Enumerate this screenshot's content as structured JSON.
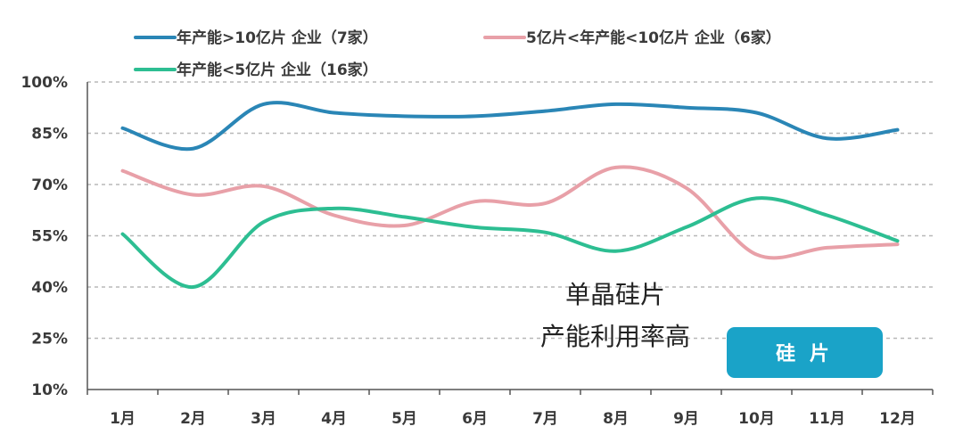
{
  "colors": {
    "series_blue": "#2a86b6",
    "series_pink": "#e8a0a8",
    "series_green": "#2dbe92",
    "badge_bg": "#1aa3c8",
    "grid": "#b8b8b8",
    "axis": "#555555"
  },
  "chart_data": {
    "type": "line",
    "title": "",
    "xlabel": "",
    "ylabel": "",
    "categories": [
      "1月",
      "2月",
      "3月",
      "4月",
      "5月",
      "6月",
      "7月",
      "8月",
      "9月",
      "10月",
      "11月",
      "12月"
    ],
    "y_ticks": [
      "10%",
      "25%",
      "40%",
      "55%",
      "70%",
      "85%",
      "100%"
    ],
    "ylim": [
      10,
      100
    ],
    "grid": true,
    "legend_position": "top",
    "series": [
      {
        "name": "年产能>10亿片 企业（7家）",
        "color": "#2a86b6",
        "values": [
          86.5,
          80.5,
          93.5,
          91,
          90,
          90,
          91.5,
          93.5,
          92.5,
          91,
          83.5,
          86
        ]
      },
      {
        "name": "5亿片<年产能<10亿片 企业（6家）",
        "color": "#e8a0a8",
        "values": [
          74,
          67,
          69.5,
          61,
          58,
          65,
          64.5,
          75,
          69,
          49.5,
          51.5,
          52.5
        ]
      },
      {
        "name": "年产能<5亿片 企业（16家）",
        "color": "#2dbe92",
        "values": [
          55.5,
          40,
          59,
          63,
          60.5,
          57.5,
          56,
          50.5,
          57.5,
          66,
          61,
          53.5
        ]
      }
    ],
    "annotation": [
      "单晶硅片",
      "产能利用率高"
    ],
    "badge": "硅 片"
  }
}
